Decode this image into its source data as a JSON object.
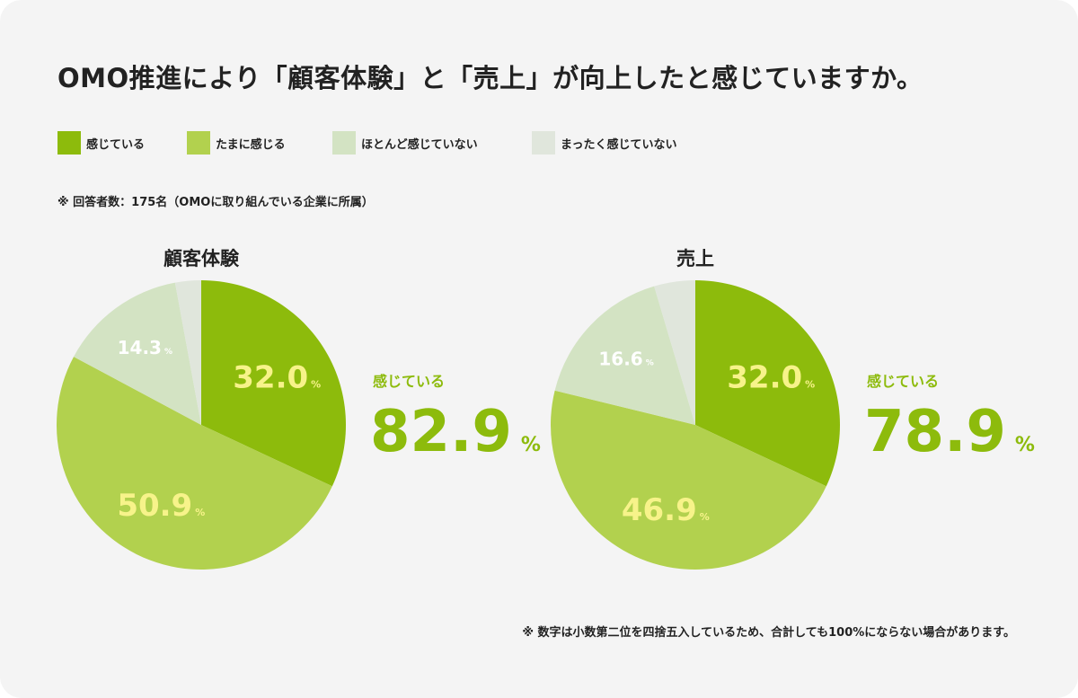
{
  "title": "OMO推進により「顧客体験」と「売上」が向上したと感じていますか。",
  "legend": [
    {
      "label": "感じている",
      "color": "#8dbb0c"
    },
    {
      "label": "たまに感じる",
      "color": "#b2d14e"
    },
    {
      "label": "ほとんど感じていない",
      "color": "#d3e3c3"
    },
    {
      "label": "まったく感じていない",
      "color": "#e0e6dc"
    }
  ],
  "respondents_note": "※ 回答者数：175名（OMOに取り組んでいる企業に所属）",
  "footnote": "※ 数字は小数第二位を四捨五入しているため、合計しても100%にならない場合があります。",
  "chart_data": [
    {
      "type": "pie",
      "title": "顧客体験",
      "categories": [
        "感じている",
        "たまに感じる",
        "ほとんど感じていない",
        "まったく感じていない"
      ],
      "values": [
        32.0,
        50.9,
        14.3,
        2.9
      ],
      "labels": [
        "32.0",
        "50.9",
        "14.3",
        ""
      ],
      "summary_label": "感じている",
      "summary_value": "82.9",
      "unit": "%"
    },
    {
      "type": "pie",
      "title": "売上",
      "categories": [
        "感じている",
        "たまに感じる",
        "ほとんど感じていない",
        "まったく感じていない"
      ],
      "values": [
        32.0,
        46.9,
        16.6,
        4.6
      ],
      "labels": [
        "32.0",
        "46.9",
        "16.6",
        ""
      ],
      "summary_label": "感じている",
      "summary_value": "78.9",
      "unit": "%"
    }
  ],
  "label_colors": {
    "primary": "#f7f38a",
    "secondary": "#ffffff"
  }
}
